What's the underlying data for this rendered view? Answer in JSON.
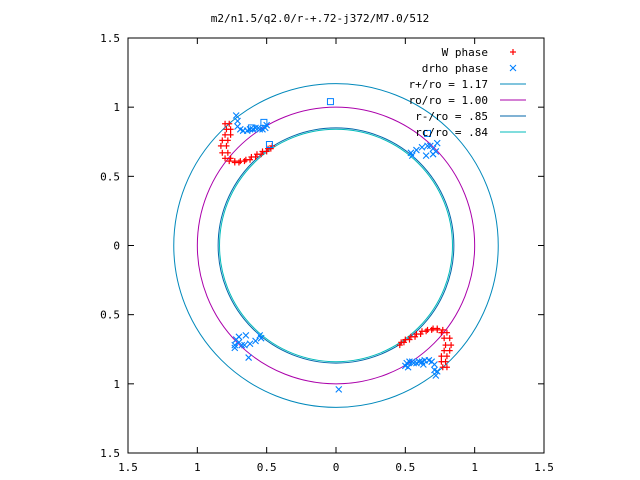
{
  "chart_data": {
    "type": "scatter",
    "title": "m2/n1.5/q2.0/r-+.72-j372/M7.0/512",
    "xlabel": "",
    "ylabel": "",
    "xlim": [
      -1.5,
      1.5
    ],
    "ylim": [
      -1.5,
      1.5
    ],
    "x_ticks": [
      -1.5,
      -1,
      -0.5,
      0,
      0.5,
      1,
      1.5
    ],
    "y_ticks": [
      -1.5,
      -1,
      -0.5,
      0,
      0.5,
      1,
      1.5
    ],
    "x_tick_labels": [
      "1.5",
      "1",
      "0.5",
      "0",
      "0.5",
      "1",
      "1.5"
    ],
    "y_tick_labels": [
      "1.5",
      "1",
      "0.5",
      "0",
      "0.5",
      "1",
      "1.5"
    ],
    "grid": false,
    "legend_position": "top-right",
    "series": [
      {
        "name": "W phase",
        "kind": "points",
        "marker": "plus",
        "color": "#ff0000",
        "x": [
          -0.8,
          -0.79,
          -0.8,
          -0.82,
          -0.83,
          -0.82,
          -0.8,
          -0.77,
          -0.73,
          -0.69,
          -0.65,
          -0.61,
          -0.57,
          -0.53,
          -0.49,
          -0.46,
          -0.77,
          -0.76,
          -0.76,
          -0.78,
          -0.79,
          -0.78,
          -0.76,
          -0.73,
          -0.7,
          -0.66,
          -0.62,
          -0.58,
          -0.54,
          -0.5,
          -0.47,
          0.8,
          0.79,
          0.8,
          0.82,
          0.83,
          0.82,
          0.8,
          0.77,
          0.73,
          0.69,
          0.65,
          0.61,
          0.57,
          0.53,
          0.49,
          0.46,
          0.77,
          0.76,
          0.76,
          0.78,
          0.79,
          0.78,
          0.76,
          0.73,
          0.7,
          0.66,
          0.62,
          0.58,
          0.54,
          0.5,
          0.47
        ],
        "y": [
          0.88,
          0.84,
          0.8,
          0.76,
          0.72,
          0.67,
          0.63,
          0.61,
          0.6,
          0.61,
          0.62,
          0.64,
          0.66,
          0.68,
          0.7,
          0.72,
          0.88,
          0.84,
          0.8,
          0.76,
          0.72,
          0.67,
          0.63,
          0.61,
          0.6,
          0.61,
          0.62,
          0.64,
          0.66,
          0.68,
          0.7,
          -0.88,
          -0.84,
          -0.8,
          -0.76,
          -0.72,
          -0.67,
          -0.63,
          -0.61,
          -0.6,
          -0.61,
          -0.62,
          -0.64,
          -0.66,
          -0.68,
          -0.7,
          -0.72,
          -0.88,
          -0.84,
          -0.8,
          -0.76,
          -0.72,
          -0.67,
          -0.63,
          -0.61,
          -0.6,
          -0.61,
          -0.62,
          -0.64,
          -0.66,
          -0.68,
          -0.7
        ]
      },
      {
        "name": "drho phase",
        "kind": "points",
        "marker": "cross",
        "color": "#0080ff",
        "x": [
          -0.72,
          -0.71,
          -0.71,
          -0.69,
          -0.67,
          -0.64,
          -0.62,
          -0.6,
          -0.58,
          -0.56,
          -0.55,
          -0.53,
          -0.51,
          -0.5,
          0.72,
          0.71,
          0.71,
          0.69,
          0.67,
          0.64,
          0.62,
          0.6,
          0.58,
          0.56,
          0.55,
          0.53,
          0.51,
          0.5,
          0.55,
          0.65,
          0.7,
          0.72,
          0.7,
          0.68,
          0.66,
          0.62,
          0.58,
          0.54,
          -0.55,
          -0.65,
          -0.7,
          -0.72,
          -0.7,
          -0.68,
          -0.66,
          -0.62,
          -0.58,
          -0.54,
          0.73,
          -0.73,
          -0.73,
          0.73,
          -0.63,
          0.63,
          0.02,
          0.52
        ],
        "y": [
          0.94,
          0.9,
          0.86,
          0.84,
          0.83,
          0.83,
          0.84,
          0.84,
          0.85,
          0.85,
          0.84,
          0.84,
          0.85,
          0.87,
          -0.94,
          -0.9,
          -0.86,
          -0.84,
          -0.83,
          -0.83,
          -0.84,
          -0.84,
          -0.85,
          -0.85,
          -0.84,
          -0.84,
          -0.85,
          -0.87,
          0.65,
          0.65,
          0.66,
          0.68,
          0.7,
          0.72,
          0.72,
          0.71,
          0.69,
          0.67,
          -0.65,
          -0.65,
          -0.66,
          -0.68,
          -0.7,
          -0.72,
          -0.72,
          -0.71,
          -0.69,
          -0.67,
          0.74,
          -0.74,
          -0.72,
          -0.91,
          -0.81,
          -0.86,
          -1.04,
          -0.88
        ]
      },
      {
        "name": "drho phase squares",
        "kind": "squares",
        "color": "#0080ff",
        "x": [
          -0.52,
          -0.61,
          0.66,
          -0.04,
          -0.48
        ],
        "y": [
          0.89,
          0.85,
          0.81,
          1.04,
          0.73
        ]
      },
      {
        "name": "r+/ro = 1.17",
        "kind": "circle",
        "color": "#0088bb",
        "r": 1.17
      },
      {
        "name": "ro/ro = 1.00",
        "kind": "circle",
        "color": "#aa00aa",
        "r": 1.0
      },
      {
        "name": "r-/ro = .85",
        "kind": "circle",
        "color": "#0066aa",
        "r": 0.85
      },
      {
        "name": "rc/ro = .84",
        "kind": "circle",
        "color": "#00bbbb",
        "r": 0.84
      }
    ],
    "legend": [
      {
        "label": "W phase",
        "marker": "plus",
        "color": "#ff0000"
      },
      {
        "label": "drho phase",
        "marker": "cross",
        "color": "#0080ff"
      },
      {
        "label": "r+/ro = 1.17",
        "marker": "line",
        "color": "#0088bb"
      },
      {
        "label": "ro/ro = 1.00",
        "marker": "line",
        "color": "#aa00aa"
      },
      {
        "label": "r-/ro = .85",
        "marker": "line",
        "color": "#0066aa"
      },
      {
        "label": "rc/ro = .84",
        "marker": "line",
        "color": "#00bbbb"
      }
    ]
  }
}
